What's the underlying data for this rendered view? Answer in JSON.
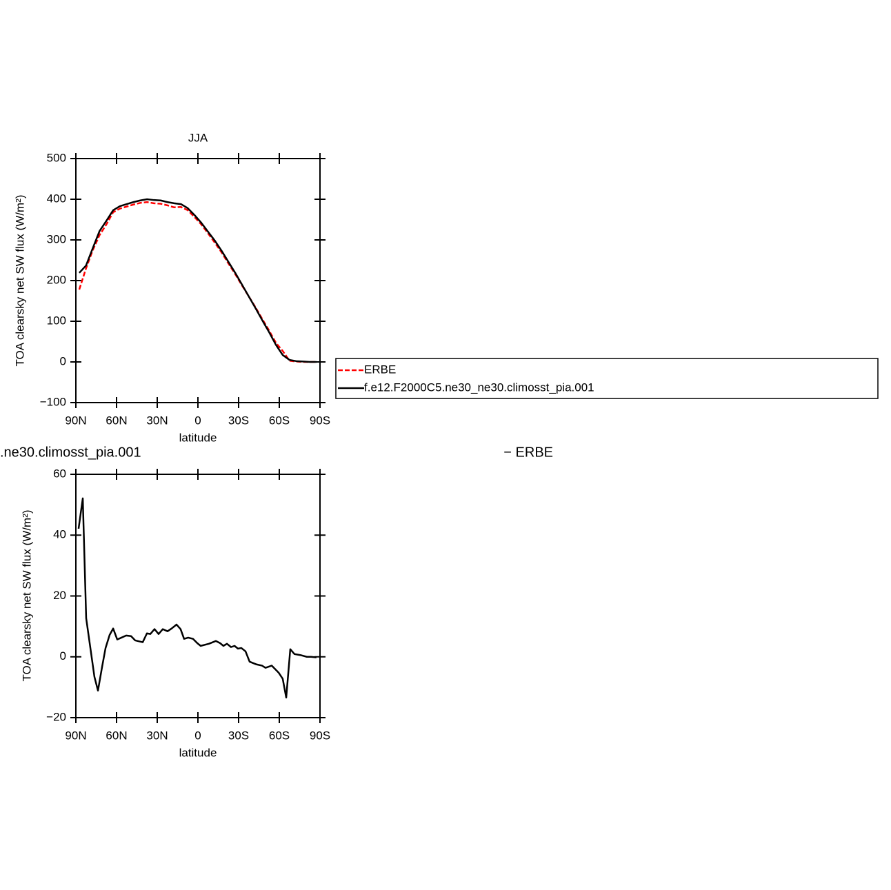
{
  "chart_data": [
    {
      "type": "line",
      "title": "JJA",
      "xlabel": "latitude",
      "ylabel": "TOA clearsky net SW flux (W/m²)",
      "x": [
        87.5,
        82.5,
        77.5,
        72.5,
        67.5,
        62.5,
        57.5,
        52.5,
        47.5,
        42.5,
        37.5,
        32.5,
        27.5,
        22.5,
        17.5,
        12.5,
        7.5,
        2.5,
        -2.5,
        -7.5,
        -12.5,
        -17.5,
        -22.5,
        -27.5,
        -32.5,
        -37.5,
        -42.5,
        -47.5,
        -52.5,
        -57.5,
        -62.5,
        -67.5,
        -72.5,
        -77.5,
        -82.5,
        -87.5
      ],
      "series": [
        {
          "name": "ERBE",
          "color": "#ff0000",
          "dashed": true,
          "values": [
            178,
            230,
            275,
            312,
            338,
            368,
            377,
            382,
            387,
            391,
            393,
            390,
            389,
            385,
            380,
            381,
            373,
            356,
            338,
            316,
            293,
            269,
            242,
            216,
            188,
            161,
            134,
            105,
            77,
            47,
            27,
            3,
            1,
            0,
            0,
            0
          ]
        },
        {
          "name": "f.e12.F2000C5.ne30_ne30.climosst_pia.001",
          "color": "#000000",
          "dashed": false,
          "values": [
            219,
            237,
            280,
            322,
            347,
            373,
            383,
            388,
            393,
            397,
            400,
            398,
            397,
            393,
            390,
            388,
            378,
            361,
            342,
            320,
            298,
            273,
            246,
            219,
            190,
            161,
            132,
            102,
            73,
            42,
            17,
            5,
            2,
            1,
            0,
            0
          ]
        }
      ],
      "xlim": [
        90,
        -90
      ],
      "xticks": [
        {
          "value": 90,
          "label": "90N"
        },
        {
          "value": 60,
          "label": "60N"
        },
        {
          "value": 30,
          "label": "30N"
        },
        0,
        {
          "value": -30,
          "label": "30S"
        },
        {
          "value": -60,
          "label": "60S"
        },
        {
          "value": -90,
          "label": "90S"
        }
      ],
      "ylim": [
        -100,
        500
      ],
      "yticks": [
        {
          "value": -100,
          "label": "−100"
        },
        0,
        100,
        200,
        300,
        400,
        500
      ],
      "legend": "right"
    },
    {
      "type": "line",
      "title_left": ".ne30.climosst_pia.001",
      "title_right": "− ERBE",
      "xlabel": "latitude",
      "ylabel": "TOA clearsky net SW flux (W/m²)",
      "series": [
        {
          "color": "#000000",
          "dashed": false,
          "x": [
            88,
            84.9,
            82.4,
            79.3,
            76.3,
            73.7,
            70.7,
            68.1,
            65.1,
            62.5,
            59.5,
            56.4,
            52.9,
            49.3,
            46.3,
            40.7,
            37.6,
            35.1,
            32,
            29,
            25.9,
            22.4,
            19.4,
            15.8,
            12.8,
            10.2,
            7.2,
            3.6,
            0.5,
            -2,
            -8.1,
            -13.2,
            -16.3,
            -18.8,
            -21.4,
            -24.4,
            -27,
            -29.5,
            -32,
            -35.1,
            -38.1,
            -43.2,
            -47.3,
            -49.8,
            -54.4,
            -59.5,
            -62.5,
            -65.1,
            -68.1,
            -71.2,
            -76.2,
            -80.3,
            -83.4,
            -87.4
          ],
          "values": [
            42.1,
            52.1,
            12.7,
            2.9,
            -6.6,
            -11.1,
            -3.4,
            2.9,
            7.2,
            9.3,
            5.7,
            6.3,
            7,
            6.8,
            5.4,
            4.8,
            7.7,
            7.5,
            9.1,
            7.5,
            9.1,
            8.4,
            9.3,
            10.6,
            9.1,
            5.9,
            6.3,
            5.9,
            4.5,
            3.6,
            4.3,
            5.2,
            4.5,
            3.6,
            4.3,
            3.2,
            3.6,
            2.7,
            2.9,
            1.8,
            -1.6,
            -2.5,
            -2.9,
            -3.6,
            -2.9,
            -5.2,
            -7.2,
            -13.4,
            2.5,
            0.9,
            0.5,
            0,
            0,
            -0.2
          ]
        }
      ],
      "xlim": [
        90,
        -90
      ],
      "xticks": [
        {
          "value": 90,
          "label": "90N"
        },
        {
          "value": 60,
          "label": "60N"
        },
        {
          "value": 30,
          "label": "30N"
        },
        0,
        {
          "value": -30,
          "label": "30S"
        },
        {
          "value": -60,
          "label": "60S"
        },
        {
          "value": -90,
          "label": "90S"
        }
      ],
      "ylim": [
        -20,
        60
      ],
      "yticks": [
        {
          "value": -20,
          "label": "−20"
        },
        0,
        20,
        40,
        60
      ]
    }
  ]
}
